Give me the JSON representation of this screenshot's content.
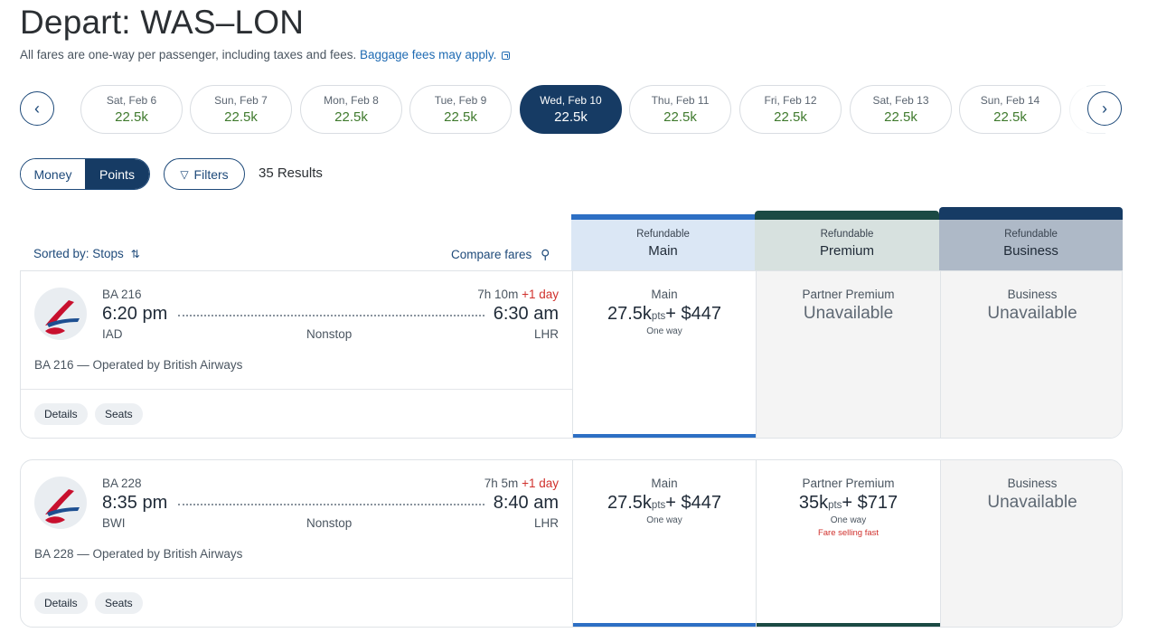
{
  "header": {
    "title": "Depart: WAS–LON",
    "subtitle": "All fares are one-way per passenger, including taxes and fees.",
    "baggage_link": "Baggage fees may apply."
  },
  "dates": [
    {
      "day": "Sat, Feb 6",
      "price": "22.5k"
    },
    {
      "day": "Sun, Feb 7",
      "price": "22.5k"
    },
    {
      "day": "Mon, Feb 8",
      "price": "22.5k"
    },
    {
      "day": "Tue, Feb 9",
      "price": "22.5k"
    },
    {
      "day": "Wed, Feb 10",
      "price": "22.5k",
      "selected": true
    },
    {
      "day": "Thu, Feb 11",
      "price": "22.5k"
    },
    {
      "day": "Fri, Feb 12",
      "price": "22.5k"
    },
    {
      "day": "Sat, Feb 13",
      "price": "22.5k"
    },
    {
      "day": "Sun, Feb 14",
      "price": "22.5k"
    }
  ],
  "nav": {
    "prev_icon": "‹",
    "next_icon": "›"
  },
  "controls": {
    "money_label": "Money",
    "points_label": "Points",
    "filters_label": "Filters",
    "filter_icon": "▽",
    "results": "35 Results"
  },
  "list_header": {
    "sorted_by": "Sorted by: Stops",
    "sort_icon": "⇅",
    "compare_fares": "Compare fares",
    "compare_icon": "⚲"
  },
  "columns": [
    {
      "refund": "Refundable",
      "cabin": "Main"
    },
    {
      "refund": "Refundable",
      "cabin": "Premium"
    },
    {
      "refund": "Refundable",
      "cabin": "Business"
    }
  ],
  "flights": [
    {
      "number": "BA 216",
      "depart_time": "6:20 pm",
      "arrive_time": "6:30 am",
      "duration": "7h 10m",
      "plus_day": "+1 day",
      "from": "IAD",
      "to": "LHR",
      "stops": "Nonstop",
      "operated": "BA 216 — Operated by British Airways",
      "details_label": "Details",
      "seats_label": "Seats",
      "main": {
        "label": "Main",
        "points": "27.5k",
        "pts": "pts",
        "cash": "+ $447",
        "note": "One way"
      },
      "premium": {
        "label": "Partner Premium",
        "status": "Unavailable"
      },
      "business": {
        "label": "Business",
        "status": "Unavailable"
      }
    },
    {
      "number": "BA 228",
      "depart_time": "8:35 pm",
      "arrive_time": "8:40 am",
      "duration": "7h 5m",
      "plus_day": "+1 day",
      "from": "BWI",
      "to": "LHR",
      "stops": "Nonstop",
      "operated": "BA 228 — Operated by British Airways",
      "details_label": "Details",
      "seats_label": "Seats",
      "main": {
        "label": "Main",
        "points": "27.5k",
        "pts": "pts",
        "cash": "+ $447",
        "note": "One way"
      },
      "premium": {
        "label": "Partner Premium",
        "points": "35k",
        "pts": "pts",
        "cash": "+ $717",
        "note": "One way",
        "alert": "Fare selling fast"
      },
      "business": {
        "label": "Business",
        "status": "Unavailable"
      }
    }
  ],
  "colors": {
    "accent": "#163b64",
    "main_bar": "#2d6fc4",
    "premium_bar": "#1b4a44",
    "points_green": "#3f7a2d",
    "alert_red": "#d0312d"
  }
}
